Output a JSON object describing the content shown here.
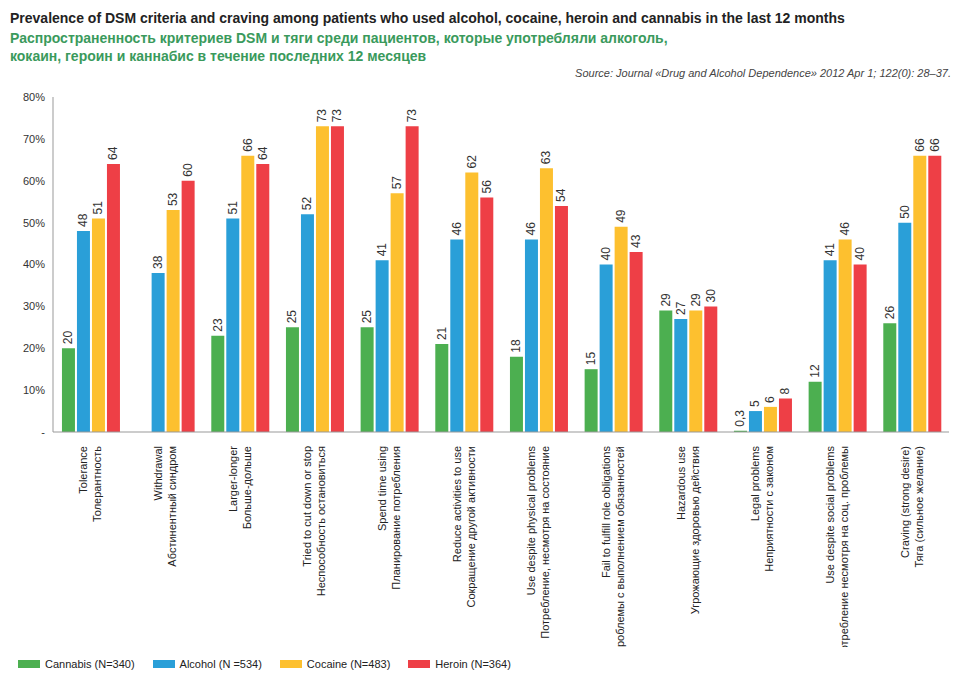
{
  "chart_data": {
    "type": "bar",
    "title": "Prevalence of DSM criteria and craving among patients who used alcohol, cocaine, heroin and cannabis in the last 12 months",
    "subtitle": "Распространенность критериев DSM и тяги среди пациентов, которые употребляли алкоголь, кокаин, героин и каннабис в течение последних 12 месяцев",
    "annotations": [
      "Source: Journal «Drug and Alcohol Dependence» 2012 Apr 1; 122(0): 28–37."
    ],
    "categories": [
      "Tolerance\nТолерантность",
      "Withdrawal\nАбстинентный синдром",
      "Larger-longer\nБольше-дольше",
      "Tried to cut down or stop\nНеспособность остановиться",
      "Spend time using\nПланирование потребления",
      "Reduce activities to use\nСокращение другой активности",
      "Use despite physical problems\nПотребление, несмотря на состояние",
      "Fail to fulfill role obligations\nПроблемы с выполнением обязанностей",
      "Hazardous use\nУгрожающие здоровью действия",
      "Legal problems\nНеприятности с законом",
      "Use despite social problems\nПотребление несмотря на соц. проблемы",
      "Craving (strong desire)\nТяга (сильное желание)"
    ],
    "series": [
      {
        "name": "Cannabis (N=340)",
        "color": "#4caf50",
        "values": [
          20,
          null,
          23,
          25,
          25,
          21,
          18,
          15,
          29,
          0.3,
          12,
          26
        ],
        "value_labels": [
          "20",
          null,
          "23",
          "25",
          "25",
          "21",
          "18",
          "15",
          "29",
          "0,3",
          "12",
          "26"
        ]
      },
      {
        "name": "Alcohol (N =534)",
        "color": "#2a9fd8",
        "values": [
          48,
          38,
          51,
          52,
          41,
          46,
          46,
          40,
          27,
          5,
          41,
          50
        ]
      },
      {
        "name": "Cocaine (N=483)",
        "color": "#fdc02f",
        "values": [
          51,
          53,
          66,
          73,
          57,
          62,
          63,
          49,
          29,
          6,
          46,
          66
        ]
      },
      {
        "name": "Heroin (N=364)",
        "color": "#ee3f46",
        "values": [
          64,
          60,
          64,
          73,
          73,
          56,
          54,
          43,
          30,
          8,
          40,
          66
        ]
      }
    ],
    "ylim": [
      0,
      80
    ],
    "yticks": [
      {
        "value": 0,
        "label": "-"
      },
      {
        "value": 10,
        "label": "10%"
      },
      {
        "value": 20,
        "label": "20%"
      },
      {
        "value": 30,
        "label": "30%"
      },
      {
        "value": 40,
        "label": "40%"
      },
      {
        "value": 50,
        "label": "50%"
      },
      {
        "value": 60,
        "label": "60%"
      },
      {
        "value": 70,
        "label": "70%"
      },
      {
        "value": 80,
        "label": "80%"
      }
    ],
    "grid": false,
    "data_labels": true,
    "legend": "bottom"
  }
}
